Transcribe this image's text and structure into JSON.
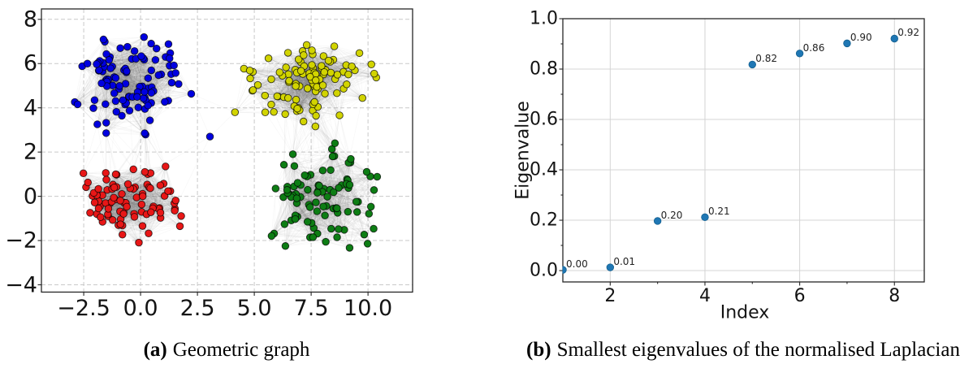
{
  "page": {
    "background": "#ffffff"
  },
  "chart_data": [
    {
      "id": "geometric-graph",
      "type": "scatter",
      "subtype": "random-geometric-network",
      "caption": {
        "label": "(a)",
        "text": "Geometric graph"
      },
      "xlabel": "",
      "ylabel": "",
      "xlim": [
        -4.36,
        11.96
      ],
      "ylim": [
        -4.33,
        8.47
      ],
      "xticks": {
        "values": [
          -2.5,
          0,
          2.5,
          5,
          7.5,
          10
        ],
        "labels": [
          "−2.5",
          "0.0",
          "2.5",
          "5.0",
          "7.5",
          "10.0"
        ]
      },
      "yticks": {
        "values": [
          -4,
          -2,
          0,
          2,
          4,
          6,
          8
        ],
        "labels": [
          "−4",
          "−2",
          "0",
          "2",
          "4",
          "6",
          "8"
        ]
      },
      "grid": {
        "show": true,
        "style": "dashed",
        "color": "#c9c9c9"
      },
      "graph_edge_color": "rgba(105,105,105,0.05)",
      "node_outline_color": "rgba(0,0,0,0.75)",
      "connect_radius": 2.35,
      "long_edge_radius": 3.8,
      "long_edge_prob": 0.02,
      "seed": 1337,
      "clusters": [
        {
          "name": "blue",
          "color": "#0000e0",
          "count": 100,
          "center": [
            -0.45,
            5.3
          ],
          "std": [
            1.15,
            1.05
          ],
          "x_range": [
            -2.9,
            2.6
          ],
          "y_range": [
            2.6,
            7.5
          ]
        },
        {
          "name": "yellow",
          "color": "#d2d400",
          "count": 100,
          "center": [
            7.35,
            5.15
          ],
          "std": [
            1.3,
            1.0
          ],
          "x_range": [
            4.35,
            11.0
          ],
          "y_range": [
            3.0,
            7.3
          ]
        },
        {
          "name": "red",
          "color": "#e81717",
          "count": 88,
          "center": [
            -0.5,
            -0.15
          ],
          "std": [
            1.15,
            0.85
          ],
          "x_range": [
            -3.3,
            2.0
          ],
          "y_range": [
            -2.4,
            1.7
          ]
        },
        {
          "name": "green",
          "color": "#0d7d14",
          "count": 92,
          "center": [
            8.05,
            -0.2
          ],
          "std": [
            1.2,
            1.0
          ],
          "x_range": [
            5.45,
            11.0
          ],
          "y_range": [
            -3.2,
            2.5
          ]
        }
      ],
      "bridge_nodes": [
        {
          "cluster": "blue",
          "x": 3.05,
          "y": 2.7
        },
        {
          "cluster": "yellow",
          "x": 4.15,
          "y": 3.8
        }
      ]
    },
    {
      "id": "laplacian-eigenvalues",
      "type": "scatter",
      "caption": {
        "label": "(b)",
        "text": "Smallest eigenvalues of the normalised Laplacian"
      },
      "xlabel": "Index",
      "ylabel": "Eigenvalue",
      "xlim": [
        1,
        8.63
      ],
      "ylim": [
        -0.045,
        1.0
      ],
      "xticks": {
        "values": [
          2,
          4,
          6,
          8
        ],
        "labels": [
          "2",
          "4",
          "6",
          "8"
        ]
      },
      "yticks": {
        "values": [
          0,
          0.2,
          0.4,
          0.6,
          0.8,
          1.0
        ],
        "labels": [
          "0.0",
          "0.2",
          "0.4",
          "0.6",
          "0.8",
          "1.0"
        ]
      },
      "minor_xticks": [
        3,
        5,
        7
      ],
      "minor_yticks": [
        0.1,
        0.3,
        0.5,
        0.7,
        0.9
      ],
      "grid": {
        "show": true,
        "style": "solid",
        "color": "#d4d4d4"
      },
      "marker_color": "#1f77b4",
      "marker_outline": "#15608f",
      "x": [
        1,
        2,
        3,
        4,
        5,
        6,
        7,
        8
      ],
      "y": [
        0.003,
        0.013,
        0.197,
        0.212,
        0.818,
        0.862,
        0.902,
        0.921
      ],
      "point_labels": [
        "0.00",
        "0.01",
        "0.20",
        "0.21",
        "0.82",
        "0.86",
        "0.90",
        "0.92"
      ]
    }
  ]
}
